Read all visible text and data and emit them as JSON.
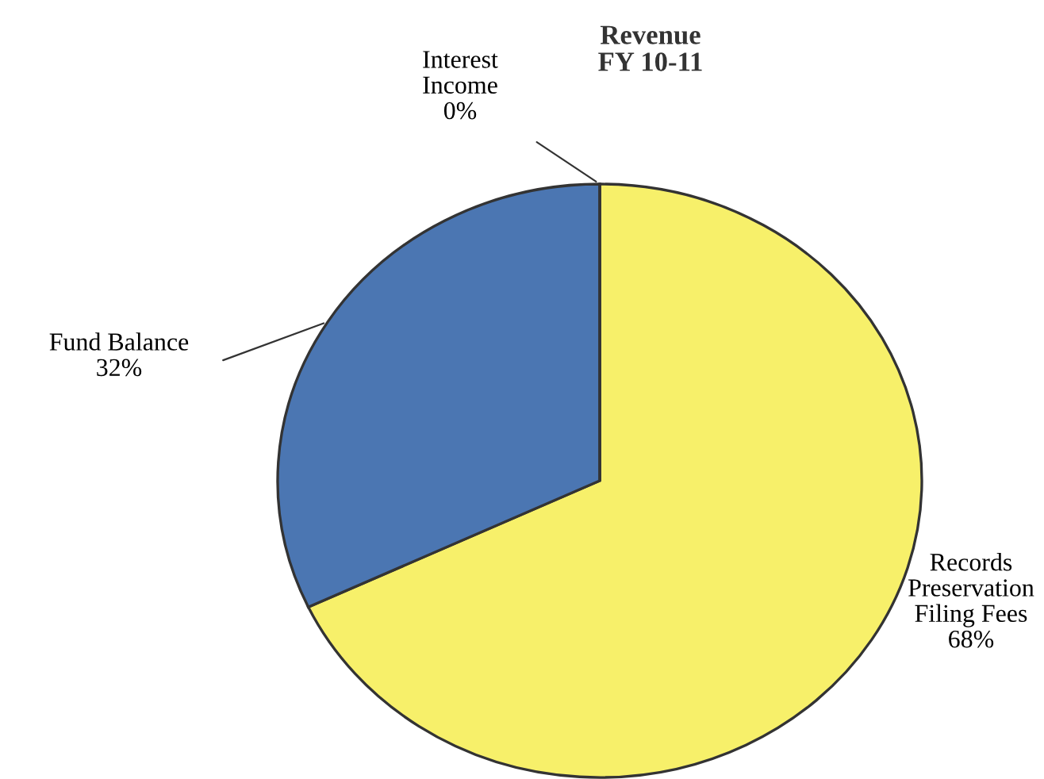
{
  "chart_data": {
    "type": "pie",
    "title": "Revenue\nFY 10-11",
    "categories": [
      "Records\nPreservation\nFiling Fees",
      "Fund Balance",
      "Interest\nIncome"
    ],
    "values": [
      68,
      32,
      0
    ],
    "value_labels": [
      "68%",
      "32%",
      "0%"
    ],
    "colors": [
      "#f7f06a",
      "#4b76b2",
      "#a0a0a0"
    ]
  }
}
